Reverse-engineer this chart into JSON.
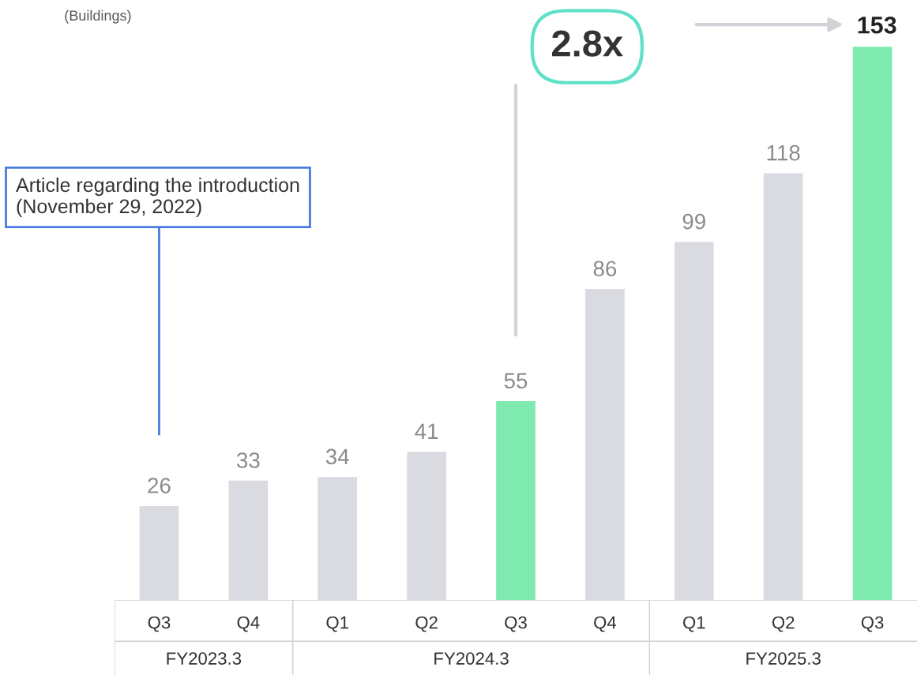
{
  "chart_data": {
    "type": "bar",
    "ylabel": "(Buildings)",
    "categories": [
      "Q3",
      "Q4",
      "Q1",
      "Q2",
      "Q3",
      "Q4",
      "Q1",
      "Q2",
      "Q3"
    ],
    "values": [
      26,
      33,
      34,
      41,
      55,
      86,
      99,
      118,
      153
    ],
    "colors": [
      "#d9dbe0",
      "#d9dbe0",
      "#d9dbe0",
      "#d9dbe0",
      "#7eeab0",
      "#d9dbe0",
      "#d9dbe0",
      "#d9dbe0",
      "#7eeab0"
    ],
    "data_labels": true,
    "annotations": [
      "2.8x",
      "Article regarding the introduction\n(November 29, 2022)",
      "FY2023.3",
      "FY2024.3",
      "FY2025.3"
    ]
  }
}
